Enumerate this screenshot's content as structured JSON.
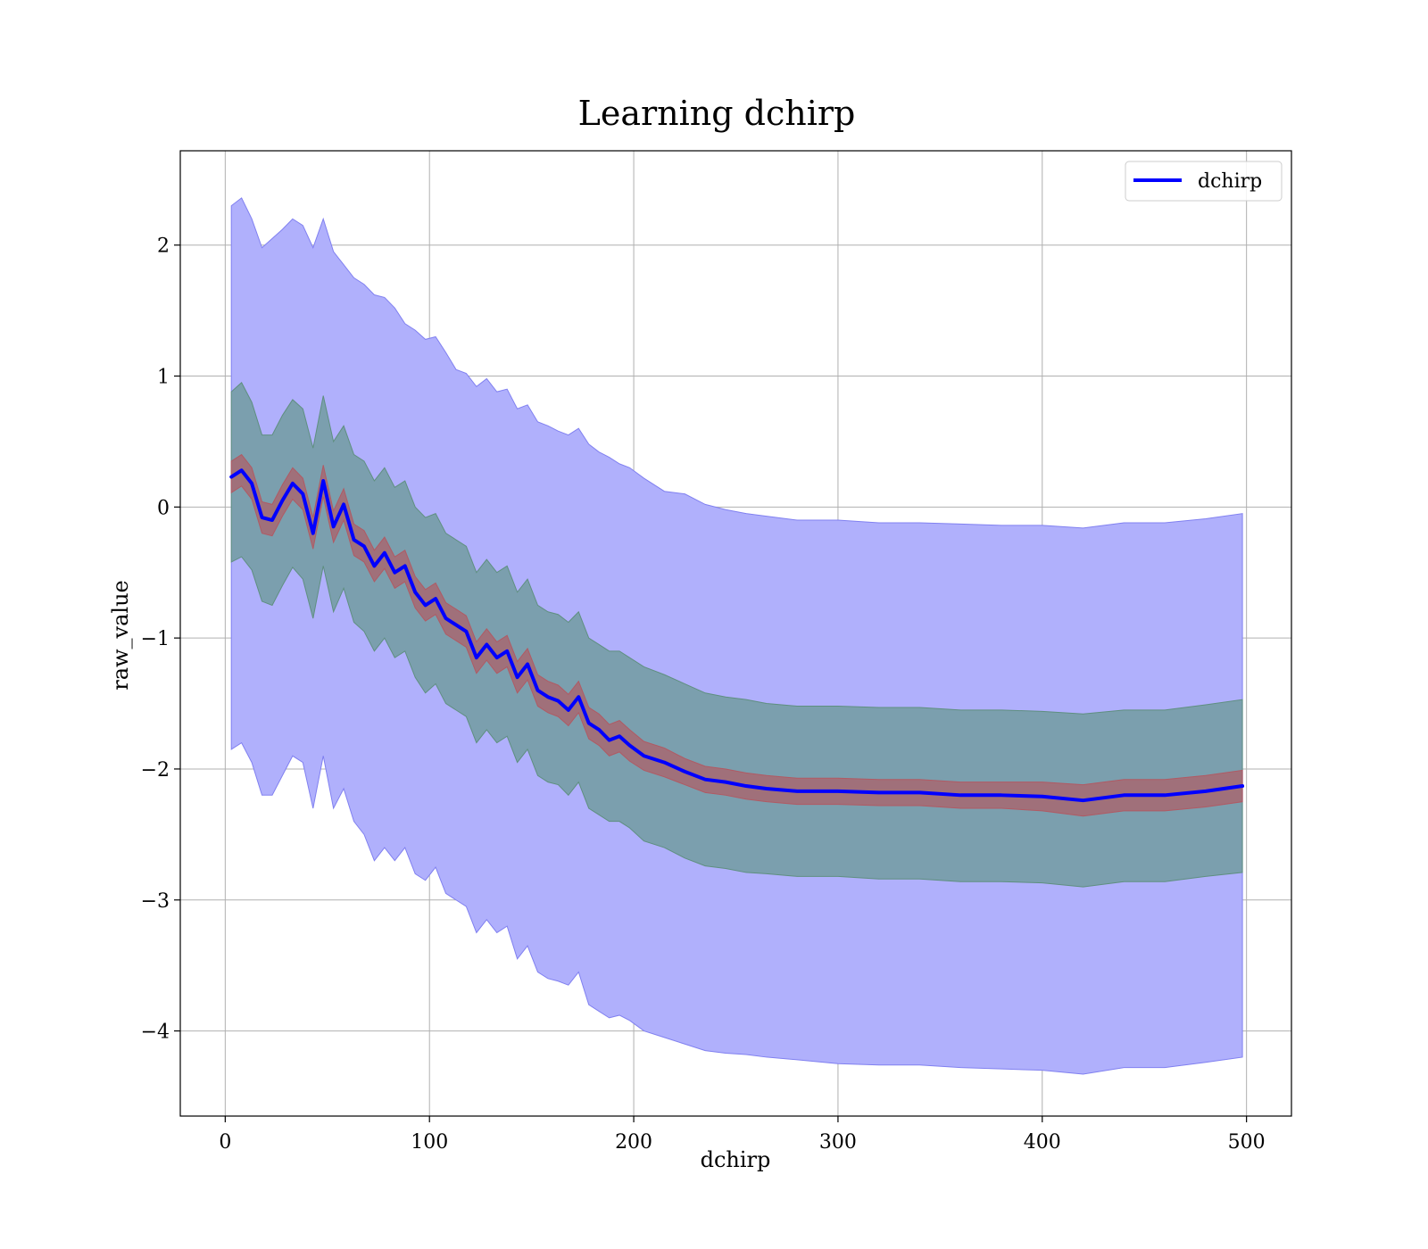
{
  "chart_data": {
    "type": "line",
    "title": "Learning dchirp",
    "xlabel": "dchirp",
    "ylabel": "raw_value",
    "xlim": [
      -22,
      522
    ],
    "ylim": [
      -4.65,
      2.72
    ],
    "xticks": [
      0,
      100,
      200,
      300,
      400,
      500
    ],
    "yticks": [
      -4,
      -3,
      -2,
      -1,
      0,
      1,
      2
    ],
    "xtick_labels": [
      "0",
      "100",
      "200",
      "300",
      "400",
      "500"
    ],
    "ytick_labels": [
      "−4",
      "−3",
      "−2",
      "−1",
      "0",
      "1",
      "2"
    ],
    "grid": true,
    "legend": {
      "position": "top-right",
      "entries": [
        "dchirp"
      ]
    },
    "colors": {
      "line": "#0000ff",
      "band_outer": "#b0b0fc",
      "band_middle": "#7b9fae",
      "band_inner": "#a0707a"
    },
    "series": [
      {
        "name": "dchirp",
        "x": [
          3,
          8,
          13,
          18,
          23,
          28,
          33,
          38,
          43,
          48,
          53,
          58,
          63,
          68,
          73,
          78,
          83,
          88,
          93,
          98,
          103,
          108,
          113,
          118,
          123,
          128,
          133,
          138,
          143,
          148,
          153,
          158,
          163,
          168,
          173,
          178,
          183,
          188,
          193,
          198,
          205,
          215,
          225,
          235,
          245,
          255,
          265,
          280,
          300,
          320,
          340,
          360,
          380,
          400,
          420,
          440,
          460,
          480,
          498
        ],
        "y": [
          0.23,
          0.28,
          0.18,
          -0.08,
          -0.1,
          0.05,
          0.18,
          0.1,
          -0.2,
          0.2,
          -0.15,
          0.02,
          -0.25,
          -0.3,
          -0.45,
          -0.35,
          -0.5,
          -0.45,
          -0.65,
          -0.75,
          -0.7,
          -0.85,
          -0.9,
          -0.95,
          -1.15,
          -1.05,
          -1.15,
          -1.1,
          -1.3,
          -1.2,
          -1.4,
          -1.45,
          -1.48,
          -1.55,
          -1.45,
          -1.65,
          -1.7,
          -1.78,
          -1.75,
          -1.82,
          -1.9,
          -1.95,
          -2.02,
          -2.08,
          -2.1,
          -2.13,
          -2.15,
          -2.17,
          -2.17,
          -2.18,
          -2.18,
          -2.2,
          -2.2,
          -2.21,
          -2.24,
          -2.2,
          -2.2,
          -2.17,
          -2.13
        ],
        "outer_upper": [
          2.3,
          2.36,
          2.2,
          1.98,
          2.05,
          2.12,
          2.2,
          2.15,
          1.98,
          2.2,
          1.95,
          1.85,
          1.75,
          1.7,
          1.62,
          1.6,
          1.52,
          1.4,
          1.35,
          1.28,
          1.3,
          1.18,
          1.05,
          1.02,
          0.92,
          0.98,
          0.88,
          0.9,
          0.75,
          0.78,
          0.65,
          0.62,
          0.58,
          0.55,
          0.6,
          0.48,
          0.42,
          0.38,
          0.33,
          0.3,
          0.22,
          0.12,
          0.1,
          0.02,
          -0.02,
          -0.05,
          -0.07,
          -0.1,
          -0.1,
          -0.12,
          -0.12,
          -0.13,
          -0.14,
          -0.14,
          -0.16,
          -0.12,
          -0.12,
          -0.09,
          -0.05
        ],
        "outer_lower": [
          -1.85,
          -1.8,
          -1.95,
          -2.2,
          -2.2,
          -2.05,
          -1.9,
          -1.95,
          -2.3,
          -1.9,
          -2.3,
          -2.15,
          -2.4,
          -2.5,
          -2.7,
          -2.6,
          -2.7,
          -2.6,
          -2.8,
          -2.85,
          -2.75,
          -2.95,
          -3.0,
          -3.05,
          -3.25,
          -3.15,
          -3.25,
          -3.2,
          -3.45,
          -3.35,
          -3.55,
          -3.6,
          -3.62,
          -3.65,
          -3.55,
          -3.8,
          -3.85,
          -3.9,
          -3.88,
          -3.92,
          -4.0,
          -4.05,
          -4.1,
          -4.15,
          -4.17,
          -4.18,
          -4.2,
          -4.22,
          -4.25,
          -4.26,
          -4.26,
          -4.28,
          -4.29,
          -4.3,
          -4.33,
          -4.28,
          -4.28,
          -4.24,
          -4.2
        ],
        "middle_upper": [
          0.88,
          0.95,
          0.8,
          0.55,
          0.55,
          0.7,
          0.82,
          0.75,
          0.45,
          0.85,
          0.5,
          0.62,
          0.4,
          0.35,
          0.2,
          0.3,
          0.15,
          0.2,
          0.0,
          -0.08,
          -0.05,
          -0.2,
          -0.25,
          -0.3,
          -0.5,
          -0.4,
          -0.5,
          -0.45,
          -0.65,
          -0.55,
          -0.75,
          -0.8,
          -0.82,
          -0.88,
          -0.8,
          -1.0,
          -1.05,
          -1.1,
          -1.1,
          -1.15,
          -1.22,
          -1.28,
          -1.35,
          -1.42,
          -1.45,
          -1.47,
          -1.5,
          -1.52,
          -1.52,
          -1.53,
          -1.53,
          -1.55,
          -1.55,
          -1.56,
          -1.58,
          -1.55,
          -1.55,
          -1.51,
          -1.47
        ],
        "middle_lower": [
          -0.42,
          -0.38,
          -0.48,
          -0.72,
          -0.75,
          -0.6,
          -0.46,
          -0.55,
          -0.85,
          -0.45,
          -0.8,
          -0.62,
          -0.88,
          -0.95,
          -1.1,
          -1.0,
          -1.15,
          -1.1,
          -1.3,
          -1.42,
          -1.35,
          -1.5,
          -1.55,
          -1.6,
          -1.8,
          -1.7,
          -1.8,
          -1.75,
          -1.95,
          -1.85,
          -2.05,
          -2.1,
          -2.12,
          -2.2,
          -2.1,
          -2.3,
          -2.35,
          -2.4,
          -2.4,
          -2.45,
          -2.55,
          -2.6,
          -2.68,
          -2.74,
          -2.76,
          -2.79,
          -2.8,
          -2.82,
          -2.82,
          -2.84,
          -2.84,
          -2.86,
          -2.86,
          -2.87,
          -2.9,
          -2.86,
          -2.86,
          -2.82,
          -2.79
        ],
        "inner_upper": [
          0.35,
          0.4,
          0.3,
          0.04,
          0.02,
          0.17,
          0.3,
          0.22,
          -0.08,
          0.32,
          -0.03,
          0.14,
          -0.13,
          -0.18,
          -0.33,
          -0.23,
          -0.38,
          -0.33,
          -0.53,
          -0.63,
          -0.58,
          -0.73,
          -0.78,
          -0.83,
          -1.03,
          -0.93,
          -1.03,
          -0.98,
          -1.18,
          -1.08,
          -1.28,
          -1.33,
          -1.36,
          -1.43,
          -1.33,
          -1.53,
          -1.58,
          -1.66,
          -1.63,
          -1.7,
          -1.79,
          -1.84,
          -1.92,
          -1.98,
          -2.0,
          -2.03,
          -2.05,
          -2.07,
          -2.07,
          -2.08,
          -2.08,
          -2.1,
          -2.1,
          -2.1,
          -2.12,
          -2.08,
          -2.08,
          -2.05,
          -2.01
        ],
        "inner_lower": [
          0.11,
          0.16,
          0.06,
          -0.2,
          -0.22,
          -0.07,
          0.06,
          -0.02,
          -0.32,
          0.08,
          -0.27,
          -0.1,
          -0.37,
          -0.42,
          -0.57,
          -0.47,
          -0.62,
          -0.57,
          -0.77,
          -0.87,
          -0.82,
          -0.97,
          -1.02,
          -1.07,
          -1.27,
          -1.17,
          -1.27,
          -1.22,
          -1.42,
          -1.32,
          -1.52,
          -1.57,
          -1.6,
          -1.67,
          -1.57,
          -1.77,
          -1.82,
          -1.9,
          -1.87,
          -1.94,
          -2.01,
          -2.06,
          -2.12,
          -2.18,
          -2.2,
          -2.23,
          -2.25,
          -2.27,
          -2.27,
          -2.28,
          -2.28,
          -2.3,
          -2.3,
          -2.32,
          -2.36,
          -2.32,
          -2.32,
          -2.29,
          -2.25
        ]
      }
    ]
  }
}
